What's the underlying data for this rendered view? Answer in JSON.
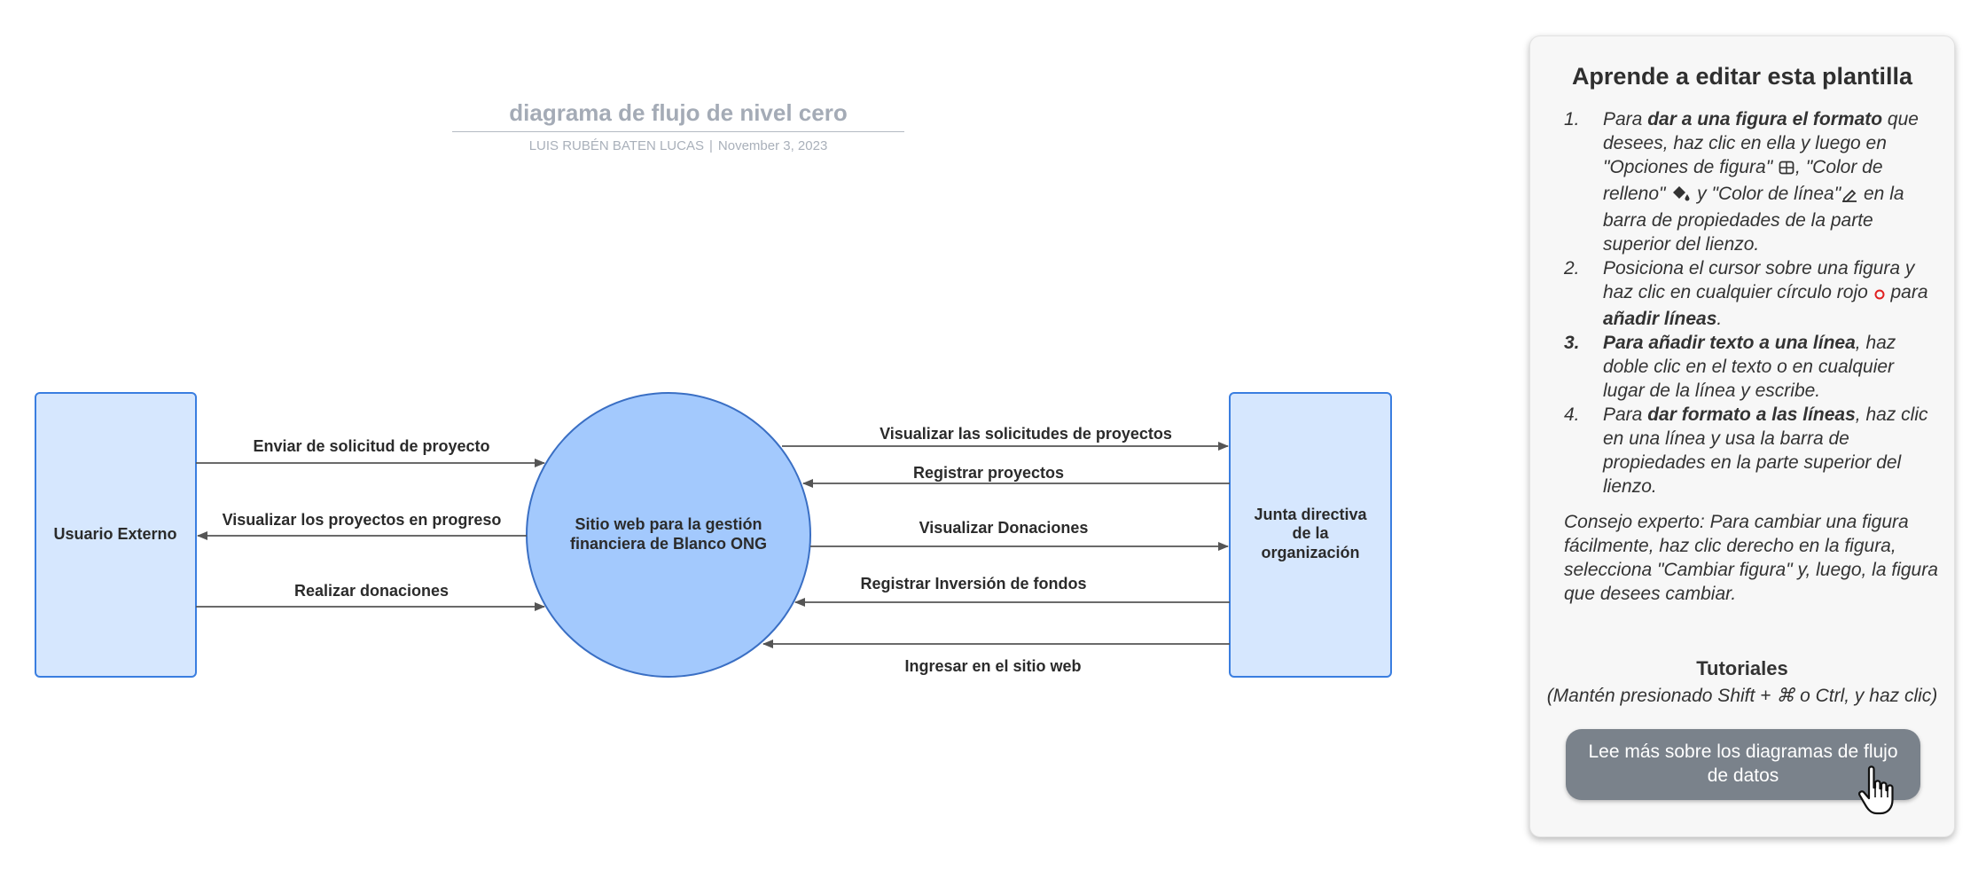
{
  "header": {
    "title": "diagrama de flujo de nivel cero",
    "author": "LUIS RUBÉN BATEN LUCAS",
    "separator": "|",
    "date": "November 3, 2023"
  },
  "diagram": {
    "nodes": {
      "external_user": "Usuario Externo",
      "website_line1": "Sitio web para la gestión",
      "website_line2": "financiera de Blanco ONG",
      "board_line1": "Junta directiva",
      "board_line2": "de la",
      "board_line3": "organización"
    },
    "flows": {
      "send_request": "Enviar de solicitud de proyecto",
      "view_progress": "Visualizar los proyectos en progreso",
      "make_donations": "Realizar donaciones",
      "view_requests": "Visualizar las solicitudes de proyectos",
      "register_projects": "Registrar proyectos",
      "view_donations": "Visualizar Donaciones",
      "register_investment": "Registrar Inversión de fondos",
      "login_site": "Ingresar en el sitio web"
    },
    "colors": {
      "box_fill": "#d6e7fe",
      "box_stroke": "#3a7ee0",
      "circle_fill": "#a3c9fd",
      "circle_stroke": "#3a6fc4",
      "arrow": "#555555"
    }
  },
  "panel": {
    "title": "Aprende a editar esta plantilla",
    "steps": [
      {
        "number": "1.",
        "t1": "Para ",
        "b1": "dar a una figura el formato",
        "t2": " que desees, haz clic en ella y luego en \"Opciones de figura\" ",
        "t3": ", \"Color de relleno\" ",
        "t4": " y \"Color de línea\"",
        "t5": " en la barra de propiedades de la parte superior del lienzo."
      },
      {
        "number": "2.",
        "t1": "Posiciona el cursor sobre una figura y haz clic en cualquier círculo rojo ",
        "t2": " para ",
        "b1": "añadir líneas",
        "t3": "."
      },
      {
        "number": "3.",
        "b1": "Para añadir texto a una línea",
        "t1": ", haz doble clic en el texto o en cualquier lugar de la línea y escribe."
      },
      {
        "number": "4.",
        "t1": "Para ",
        "b1": "dar formato a las líneas",
        "t2": ", haz clic en una línea y usa la barra de propiedades en la parte superior del lienzo."
      }
    ],
    "tip": "Consejo experto: Para cambiar una figura fácilmente, haz clic derecho en la figura, selecciona \"Cambiar figura\" y, luego, la figura que desees cambiar.",
    "tutorials_title": "Tutoriales",
    "tutorials_hint": "(Mantén presionado Shift + ⌘ o Ctrl, y haz clic)",
    "cta_label": "Lee más sobre los diagramas de flujo de datos",
    "icons": [
      "shape-options-icon",
      "fill-color-icon",
      "line-color-icon",
      "red-circle-icon",
      "hand-pointer-icon"
    ]
  }
}
